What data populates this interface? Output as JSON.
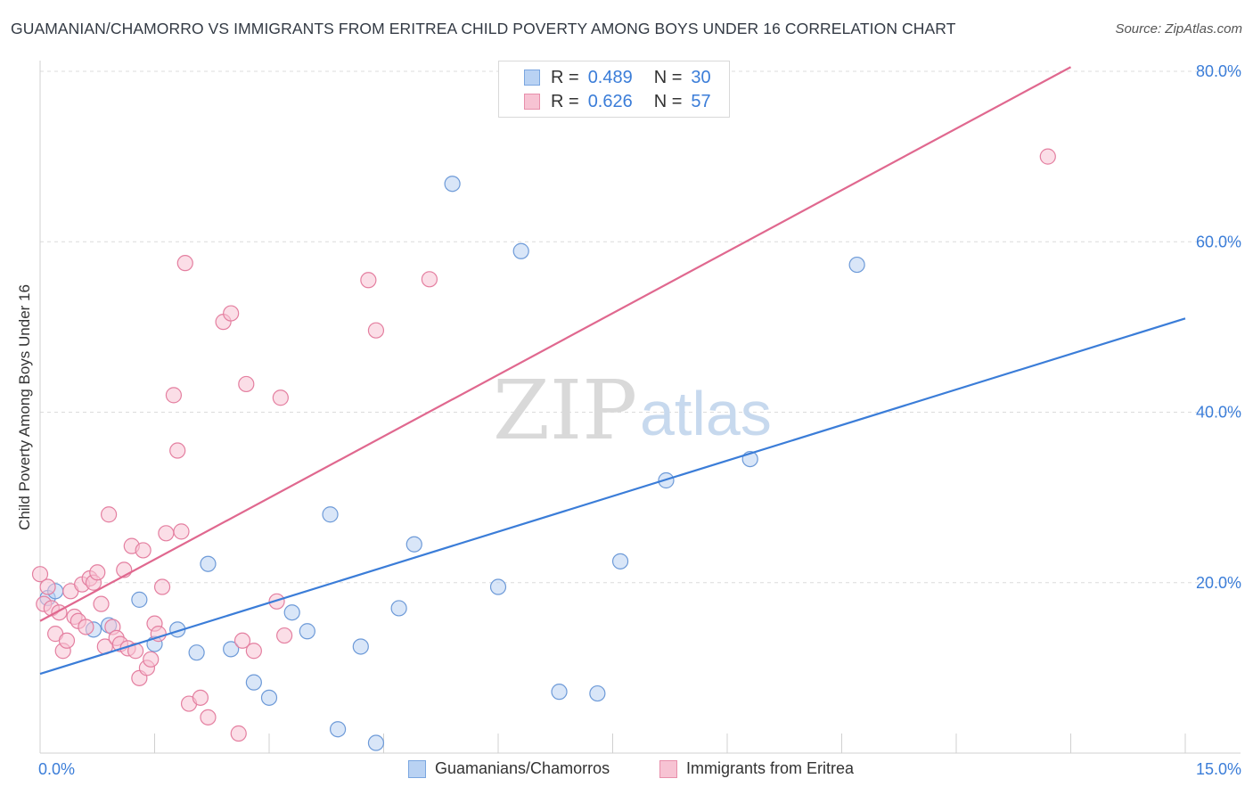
{
  "title": "GUAMANIAN/CHAMORRO VS IMMIGRANTS FROM ERITREA CHILD POVERTY AMONG BOYS UNDER 16 CORRELATION CHART",
  "source": "Source: ZipAtlas.com",
  "watermark": {
    "zip": "ZIP",
    "atlas": "atlas"
  },
  "legend": {
    "r_label": "R =",
    "n_label": "N =",
    "rows": [
      {
        "r": "0.489",
        "n": "30"
      },
      {
        "r": "0.626",
        "n": "57"
      }
    ]
  },
  "chart_data": {
    "type": "scatter",
    "xlabel": "",
    "ylabel": "Child Poverty Among Boys Under 16",
    "xlim": [
      0,
      15
    ],
    "ylim": [
      0,
      80
    ],
    "x_tick_labels": [
      "0.0%",
      "15.0%"
    ],
    "y_ticks": [
      20,
      40,
      60,
      80
    ],
    "y_tick_labels": [
      "20.0%",
      "40.0%",
      "60.0%",
      "80.0%"
    ],
    "grid": "horizontal dashed",
    "colors": {
      "blue": "#3b7dd8",
      "blue_fill": "#b9d2f3",
      "pink": "#e0688f",
      "pink_fill": "#f7c3d3",
      "axis_text": "#3b7dd8"
    },
    "series": [
      {
        "name": "Guamanians/Chamorros",
        "color": "#3b7dd8",
        "trend": {
          "x0": 0,
          "y0": 9.3,
          "x1": 15,
          "y1": 51
        },
        "points": [
          [
            0.1,
            18.2
          ],
          [
            0.2,
            19.0
          ],
          [
            0.7,
            14.5
          ],
          [
            0.9,
            15.0
          ],
          [
            1.3,
            18.0
          ],
          [
            1.5,
            12.8
          ],
          [
            1.8,
            14.5
          ],
          [
            2.05,
            11.8
          ],
          [
            2.2,
            22.2
          ],
          [
            2.5,
            12.2
          ],
          [
            2.8,
            8.3
          ],
          [
            3.0,
            6.5
          ],
          [
            3.3,
            16.5
          ],
          [
            3.5,
            14.3
          ],
          [
            3.8,
            28.0
          ],
          [
            3.9,
            2.8
          ],
          [
            4.2,
            12.5
          ],
          [
            4.4,
            1.2
          ],
          [
            4.7,
            17.0
          ],
          [
            4.9,
            24.5
          ],
          [
            5.4,
            66.8
          ],
          [
            6.0,
            19.5
          ],
          [
            6.3,
            58.9
          ],
          [
            6.8,
            7.2
          ],
          [
            7.3,
            7.0
          ],
          [
            7.6,
            22.5
          ],
          [
            8.2,
            32.0
          ],
          [
            9.3,
            34.5
          ],
          [
            10.7,
            57.3
          ]
        ]
      },
      {
        "name": "Immigrants from Eritrea",
        "color": "#e0688f",
        "trend": {
          "x0": 0,
          "y0": 15.5,
          "x1": 13.5,
          "y1": 80.5
        },
        "points": [
          [
            0.0,
            21.0
          ],
          [
            0.05,
            17.5
          ],
          [
            0.1,
            19.5
          ],
          [
            0.15,
            17.0
          ],
          [
            0.2,
            14.0
          ],
          [
            0.25,
            16.5
          ],
          [
            0.3,
            12.0
          ],
          [
            0.35,
            13.2
          ],
          [
            0.4,
            19.0
          ],
          [
            0.45,
            16.0
          ],
          [
            0.5,
            15.5
          ],
          [
            0.55,
            19.8
          ],
          [
            0.6,
            14.8
          ],
          [
            0.65,
            20.5
          ],
          [
            0.7,
            20.0
          ],
          [
            0.75,
            21.2
          ],
          [
            0.8,
            17.5
          ],
          [
            0.85,
            12.5
          ],
          [
            0.9,
            28.0
          ],
          [
            0.95,
            14.8
          ],
          [
            1.0,
            13.5
          ],
          [
            1.05,
            12.8
          ],
          [
            1.1,
            21.5
          ],
          [
            1.15,
            12.3
          ],
          [
            1.2,
            24.3
          ],
          [
            1.25,
            12.0
          ],
          [
            1.3,
            8.8
          ],
          [
            1.35,
            23.8
          ],
          [
            1.4,
            10.0
          ],
          [
            1.45,
            11.0
          ],
          [
            1.5,
            15.2
          ],
          [
            1.55,
            14.0
          ],
          [
            1.6,
            19.5
          ],
          [
            1.65,
            25.8
          ],
          [
            1.75,
            42.0
          ],
          [
            1.8,
            35.5
          ],
          [
            1.85,
            26.0
          ],
          [
            1.9,
            57.5
          ],
          [
            1.95,
            5.8
          ],
          [
            2.1,
            6.5
          ],
          [
            2.2,
            4.2
          ],
          [
            2.4,
            50.6
          ],
          [
            2.5,
            51.6
          ],
          [
            2.6,
            2.3
          ],
          [
            2.65,
            13.2
          ],
          [
            2.7,
            43.3
          ],
          [
            2.8,
            12.0
          ],
          [
            3.1,
            17.8
          ],
          [
            3.15,
            41.7
          ],
          [
            3.2,
            13.8
          ],
          [
            4.3,
            55.5
          ],
          [
            4.4,
            49.6
          ],
          [
            5.1,
            55.6
          ],
          [
            13.2,
            70.0
          ]
        ]
      }
    ]
  }
}
